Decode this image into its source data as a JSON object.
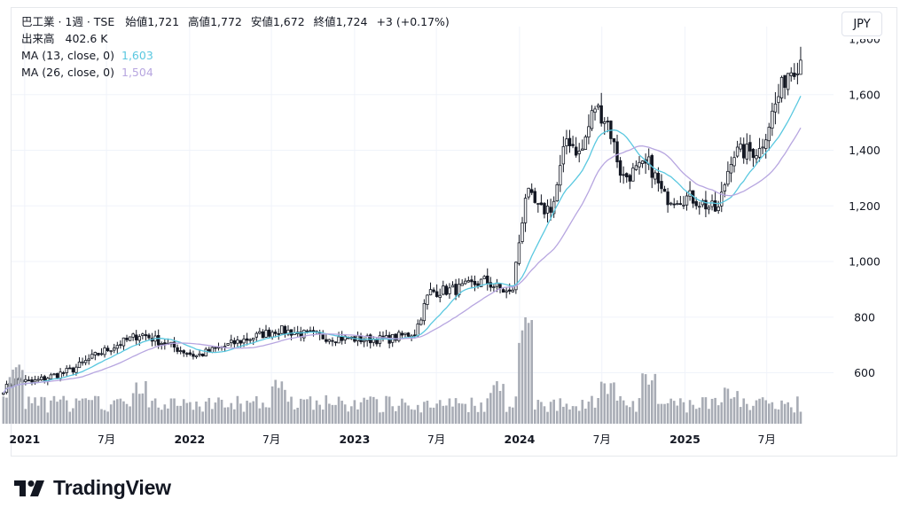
{
  "header": {
    "symbol": "巴工業 · 1週 · TSE",
    "open_label": "始値",
    "open": "1,721",
    "high_label": "高値",
    "high": "1,772",
    "low_label": "安値",
    "low": "1,672",
    "close_label": "終値",
    "close": "1,724",
    "change": "+3 (+0.17%)",
    "volume_label": "出来高",
    "volume": "402.6 K",
    "ma1_label": "MA (13, close, 0)",
    "ma1_value": "1,603",
    "ma2_label": "MA (26, close, 0)",
    "ma2_value": "1,504",
    "currency": "JPY"
  },
  "brand": {
    "name": "TradingView",
    "logo_icon": "tradingview-logo-icon"
  },
  "colors": {
    "ma13": "#5ac8e0",
    "ma26": "#b7a6e0",
    "candle": "#131722",
    "volume": "#a8acb5",
    "grid": "#f0f3fa"
  },
  "chart_data": {
    "type": "candlestick",
    "interval": "1 week",
    "yaxis": {
      "ticks": [
        600,
        800,
        1000,
        1200,
        1400,
        1600
      ],
      "tick_labels": [
        "600",
        "800",
        "1,000",
        "1,200",
        "1,400",
        "1,600"
      ],
      "position": "right"
    },
    "xaxis": {
      "ticks": [
        "2021",
        "7月",
        "2022",
        "7月",
        "2023",
        "7月",
        "2024",
        "7月",
        "2025",
        "7月"
      ],
      "bold": [
        "2021",
        "2022",
        "2023",
        "2024",
        "2025"
      ]
    },
    "anchors": [
      {
        "t": "2020-11",
        "p": 540
      },
      {
        "t": "2020-12",
        "p": 575
      },
      {
        "t": "2021-01",
        "p": 565
      },
      {
        "t": "2021-04",
        "p": 610
      },
      {
        "t": "2021-06",
        "p": 670
      },
      {
        "t": "2021-09",
        "p": 740
      },
      {
        "t": "2021-11",
        "p": 700
      },
      {
        "t": "2022-01",
        "p": 660
      },
      {
        "t": "2022-04",
        "p": 710
      },
      {
        "t": "2022-07",
        "p": 755
      },
      {
        "t": "2022-10",
        "p": 730
      },
      {
        "t": "2023-01",
        "p": 720
      },
      {
        "t": "2023-03",
        "p": 720
      },
      {
        "t": "2023-05",
        "p": 745
      },
      {
        "t": "2023-06",
        "p": 890
      },
      {
        "t": "2023-08",
        "p": 900
      },
      {
        "t": "2023-10",
        "p": 930
      },
      {
        "t": "2023-12",
        "p": 880
      },
      {
        "t": "2024-01",
        "p": 1250
      },
      {
        "t": "2024-02",
        "p": 1180
      },
      {
        "t": "2024-03",
        "p": 1200
      },
      {
        "t": "2024-04",
        "p": 1450
      },
      {
        "t": "2024-05",
        "p": 1380
      },
      {
        "t": "2024-06",
        "p": 1560
      },
      {
        "t": "2024-07",
        "p": 1500
      },
      {
        "t": "2024-08",
        "p": 1300
      },
      {
        "t": "2024-10",
        "p": 1350
      },
      {
        "t": "2024-11",
        "p": 1230
      },
      {
        "t": "2025-01",
        "p": 1230
      },
      {
        "t": "2025-03",
        "p": 1180
      },
      {
        "t": "2025-04",
        "p": 1390
      },
      {
        "t": "2025-06",
        "p": 1400
      },
      {
        "t": "2025-07",
        "p": 1540
      },
      {
        "t": "2025-08",
        "p": 1680
      },
      {
        "t": "2025-09",
        "p": 1724
      }
    ],
    "volume_spikes": [
      {
        "t": "2020-12",
        "v": 4
      },
      {
        "t": "2021-09",
        "v": 3
      },
      {
        "t": "2022-07",
        "v": 3
      },
      {
        "t": "2023-06",
        "v": 1.5
      },
      {
        "t": "2023-11",
        "v": 3
      },
      {
        "t": "2024-01",
        "v": 8
      },
      {
        "t": "2024-07",
        "v": 3
      },
      {
        "t": "2024-10",
        "v": 3.5
      },
      {
        "t": "2025-04",
        "v": 2.5
      }
    ],
    "last": {
      "open": 1721,
      "high": 1772,
      "low": 1672,
      "close": 1724,
      "volume": 402600
    },
    "series": [
      {
        "name": "MA (13, close, 0)",
        "last": 1603,
        "color": "#5ac8e0"
      },
      {
        "name": "MA (26, close, 0)",
        "last": 1504,
        "color": "#b7a6e0"
      }
    ]
  }
}
